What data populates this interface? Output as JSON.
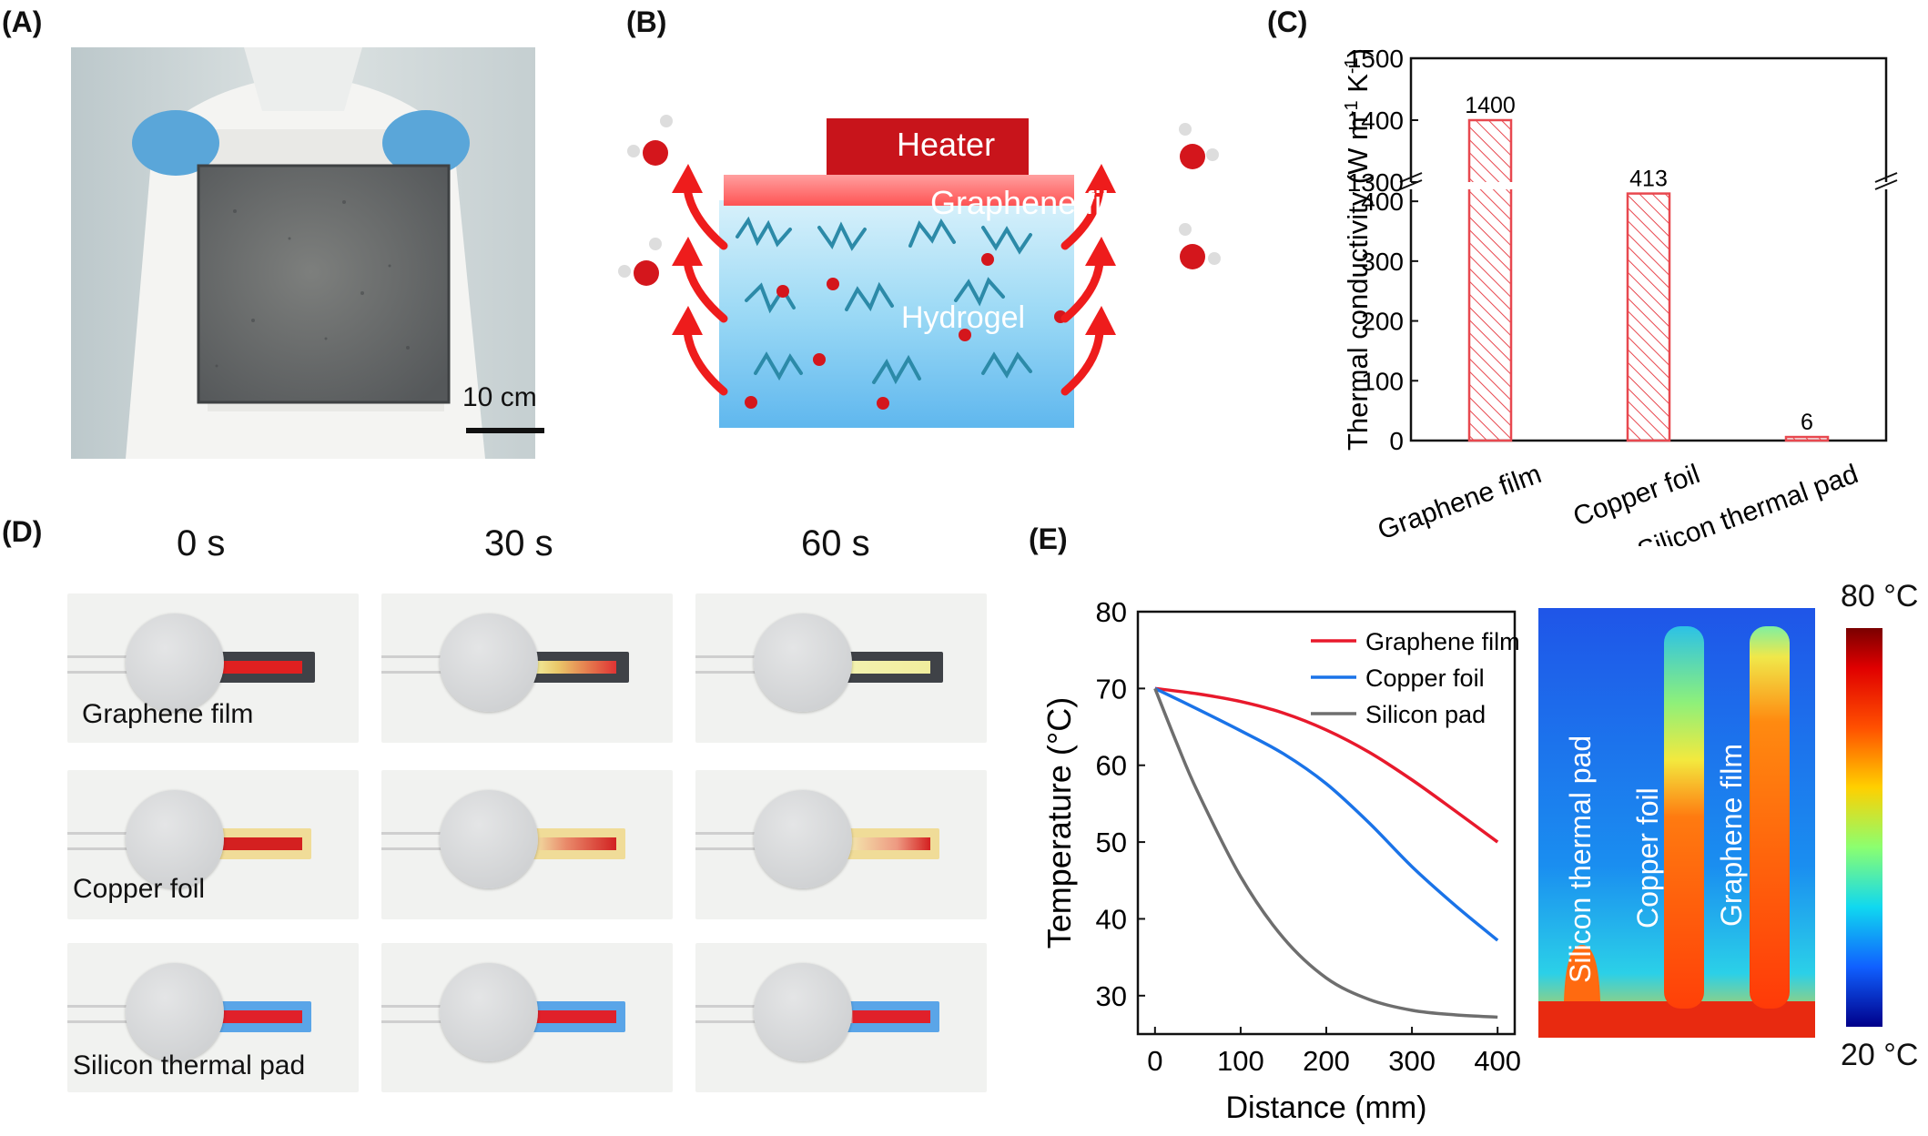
{
  "panels": {
    "a": {
      "label": "(A)",
      "scale_bar": "10 cm"
    },
    "b": {
      "label": "(B)",
      "heater": "Heater",
      "film": "Graphene film",
      "gel": "Hydrogel"
    },
    "c": {
      "label": "(C)"
    },
    "d": {
      "label": "(D)",
      "times": [
        "0 s",
        "30 s",
        "60 s"
      ],
      "rows": [
        "Graphene film",
        "Copper foil",
        "Silicon thermal pad"
      ]
    },
    "e": {
      "label": "(E)",
      "thermal_labels": [
        "Silicon thermal pad",
        "Copper foil",
        "Graphene film"
      ],
      "colorbar_max": "80 °C",
      "colorbar_min": "20 °C"
    }
  },
  "chart_data": [
    {
      "type": "bar",
      "panel": "C",
      "ylabel": "Thermal conductivity (W m-1 K-1)",
      "categories": [
        "Graphene film",
        "Copper foil",
        "Silicon thermal pad"
      ],
      "values": [
        1400,
        413,
        6
      ],
      "value_labels": [
        "1400",
        "413",
        "6"
      ],
      "y_break": [
        420,
        1300
      ],
      "ylim_lower": [
        0,
        420
      ],
      "ylim_upper": [
        1300,
        1500
      ],
      "yticks_lower": [
        "0",
        "100",
        "200",
        "300",
        "400"
      ],
      "yticks_upper": [
        "1300",
        "1400",
        "1500"
      ],
      "color": "#e8484f"
    },
    {
      "type": "line",
      "panel": "E",
      "xlabel": "Distance (mm)",
      "ylabel": "Temperature (°C)",
      "xlim": [
        -20,
        420
      ],
      "ylim": [
        25,
        80
      ],
      "xticks": [
        "0",
        "100",
        "200",
        "300",
        "400"
      ],
      "yticks": [
        "30",
        "40",
        "50",
        "60",
        "70",
        "80"
      ],
      "legend_position": "top-right",
      "series": [
        {
          "name": "Graphene film",
          "color": "#e8192c",
          "points": [
            [
              0,
              70
            ],
            [
              50,
              69.3
            ],
            [
              100,
              68.3
            ],
            [
              150,
              66.8
            ],
            [
              200,
              64.6
            ],
            [
              250,
              61.7
            ],
            [
              300,
              58.1
            ],
            [
              350,
              54.1
            ],
            [
              400,
              50
            ]
          ]
        },
        {
          "name": "Copper foil",
          "color": "#1a73e8",
          "points": [
            [
              0,
              70
            ],
            [
              50,
              67.3
            ],
            [
              100,
              64.5
            ],
            [
              150,
              61.5
            ],
            [
              200,
              57.6
            ],
            [
              250,
              52.5
            ],
            [
              300,
              46.8
            ],
            [
              350,
              41.8
            ],
            [
              400,
              37.2
            ]
          ]
        },
        {
          "name": "Silicon pad",
          "color": "#6e6e6e",
          "points": [
            [
              0,
              70
            ],
            [
              25,
              63
            ],
            [
              50,
              56.5
            ],
            [
              100,
              45.5
            ],
            [
              150,
              37.5
            ],
            [
              200,
              32.3
            ],
            [
              250,
              29.5
            ],
            [
              300,
              28.1
            ],
            [
              350,
              27.5
            ],
            [
              400,
              27.2
            ]
          ]
        }
      ]
    }
  ]
}
